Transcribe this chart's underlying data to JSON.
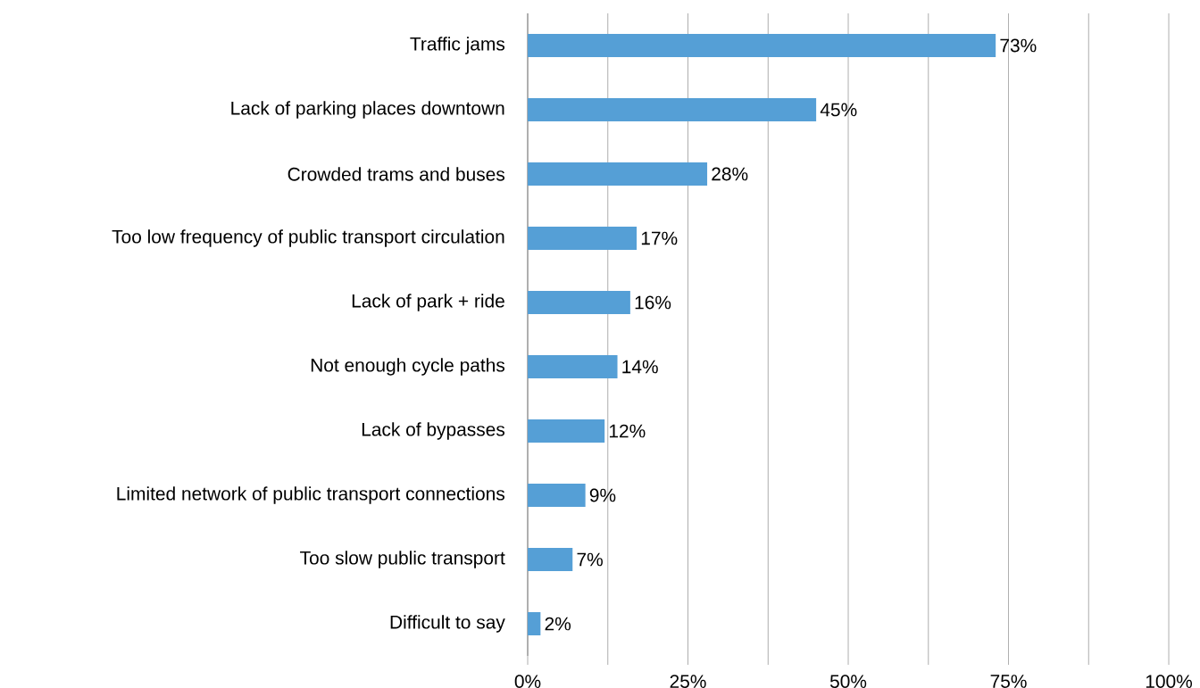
{
  "chart_data": {
    "type": "bar",
    "orientation": "horizontal",
    "categories": [
      "Traffic jams",
      "Lack of parking places downtown",
      "Crowded trams and buses",
      "Too low frequency of public transport circulation",
      "Lack of park + ride",
      "Not enough cycle paths",
      "Lack of bypasses",
      "Limited network of public transport connections",
      "Too slow public transport",
      "Difficult to say"
    ],
    "values": [
      73,
      45,
      28,
      17,
      16,
      14,
      12,
      9,
      7,
      2
    ],
    "value_labels": [
      "73%",
      "45%",
      "28%",
      "17%",
      "16%",
      "14%",
      "12%",
      "9%",
      "7%",
      "2%"
    ],
    "color": "#559fd6",
    "xlim": [
      0,
      100
    ],
    "xticks": [
      {
        "value": 0,
        "label": "0%"
      },
      {
        "value": 12.5,
        "label": null
      },
      {
        "value": 25,
        "label": "25%"
      },
      {
        "value": 37.5,
        "label": null
      },
      {
        "value": 50,
        "label": "50%"
      },
      {
        "value": 62.5,
        "label": null
      },
      {
        "value": 75,
        "label": "75%"
      },
      {
        "value": 87.5,
        "label": null
      },
      {
        "value": 100,
        "label": "100%"
      }
    ],
    "grid": "x"
  }
}
